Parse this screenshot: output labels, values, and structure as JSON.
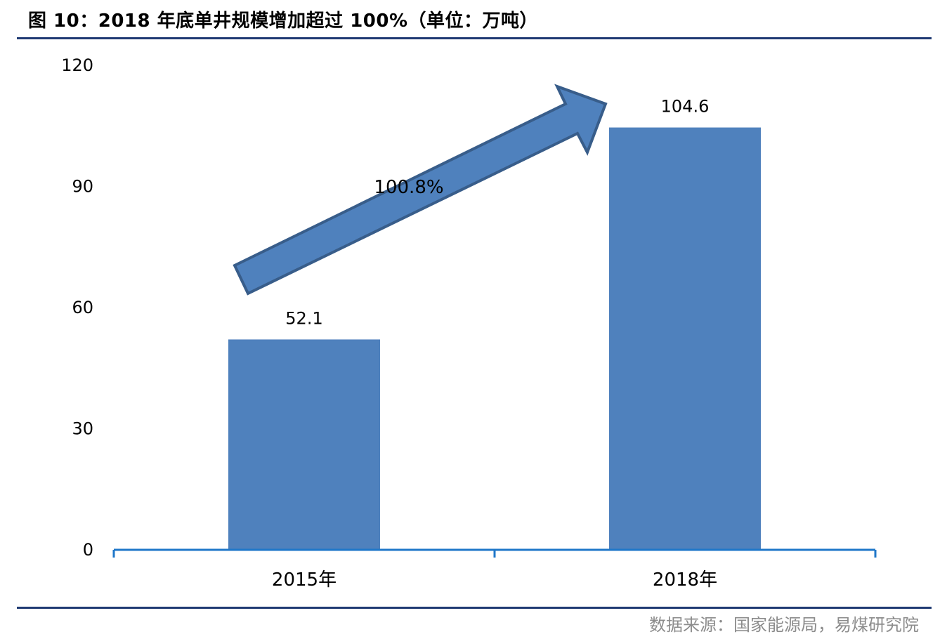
{
  "figure": {
    "title": "图 10：2018 年底单井规模增加超过 100%（单位：万吨）",
    "source": "数据来源：国家能源局，易煤研究院"
  },
  "chart_data": {
    "type": "bar",
    "categories": [
      "2015年",
      "2018年"
    ],
    "values": [
      52.1,
      104.6
    ],
    "value_labels": [
      "52.1",
      "104.6"
    ],
    "yticks": [
      0,
      30,
      60,
      90,
      120
    ],
    "ylim": [
      0,
      120
    ],
    "grid": false,
    "legend": "none",
    "annotation": {
      "text": "100.8%",
      "arrow": "upward arrow from 2015年 bar to 2018年 bar"
    },
    "colors": {
      "bar": "#4f81bd",
      "arrow_fill": "#4f81bd",
      "arrow_stroke": "#385d8a",
      "axis": "#1f77c9"
    }
  }
}
